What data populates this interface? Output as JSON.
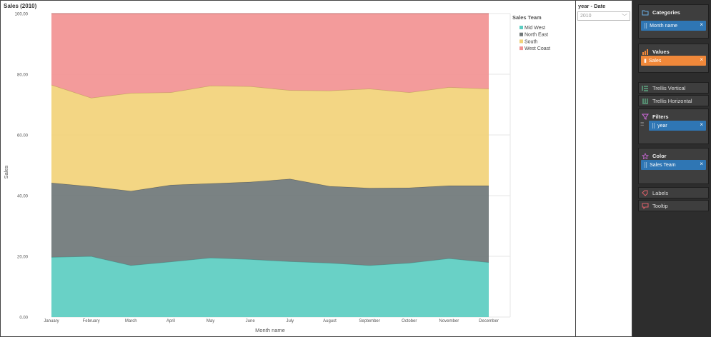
{
  "chart": {
    "title": "Sales (2010)",
    "legend_title": "Sales Team",
    "x_axis_label": "Month name",
    "y_axis_label": "Sales"
  },
  "chart_data": {
    "type": "area",
    "stacked": true,
    "title": "Sales (2010)",
    "xlabel": "Month name",
    "ylabel": "Sales",
    "ylim": [
      0,
      100
    ],
    "y_ticks": [
      "0.00",
      "20.00",
      "40.00",
      "60.00",
      "80.00",
      "100.00"
    ],
    "categories": [
      "January",
      "February",
      "March",
      "April",
      "May",
      "June",
      "July",
      "August",
      "September",
      "October",
      "November",
      "December"
    ],
    "series": [
      {
        "name": "Mid West",
        "color": "#5ccdc1",
        "values": [
          19.7,
          20.0,
          17.0,
          18.2,
          19.5,
          19.0,
          18.3,
          17.8,
          17.0,
          17.8,
          19.3,
          18.0
        ]
      },
      {
        "name": "North East",
        "color": "#6f7778",
        "values": [
          24.5,
          23.0,
          24.5,
          25.3,
          24.5,
          25.5,
          27.2,
          25.3,
          25.5,
          24.8,
          24.0,
          25.3
        ]
      },
      {
        "name": "South",
        "color": "#f2d27a",
        "values": [
          32.3,
          29.2,
          32.3,
          30.5,
          32.2,
          31.5,
          29.2,
          31.5,
          32.7,
          31.4,
          32.4,
          31.9
        ]
      },
      {
        "name": "West Coast",
        "color": "#f29393",
        "values": [
          23.5,
          27.8,
          26.2,
          26.0,
          23.8,
          24.0,
          25.3,
          25.4,
          24.8,
          26.0,
          24.3,
          24.8
        ]
      }
    ],
    "legend_position": "top-right",
    "grid": true
  },
  "slicer": {
    "title": "year - Date",
    "value": "2010"
  },
  "settings": {
    "categories": {
      "label": "Categories",
      "chip": "Month name"
    },
    "values": {
      "label": "Values",
      "chip": "Sales"
    },
    "trellis_vertical": "Trellis Vertical",
    "trellis_horizontal": "Trellis Horizontal",
    "filters": {
      "label": "Filters",
      "chip": "year"
    },
    "color": {
      "label": "Color",
      "chip": "Sales Team"
    },
    "labels": "Labels",
    "tooltip": "Tooltip",
    "remove_glyph": "×"
  }
}
